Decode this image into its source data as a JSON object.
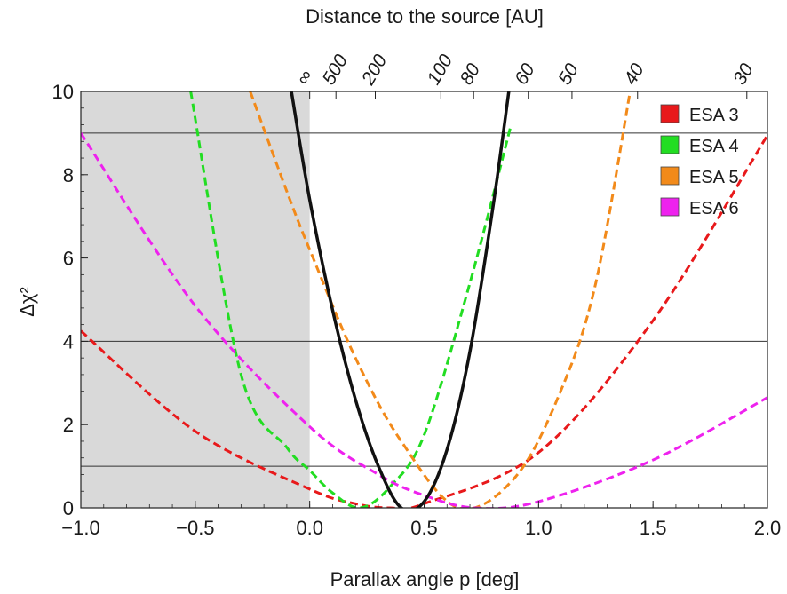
{
  "chart_data": {
    "type": "line",
    "xlabel": "Parallax angle p [deg]",
    "ylabel": "Δχ²",
    "top_axis_label": "Distance to the source [AU]",
    "xlim": [
      -1.0,
      2.0
    ],
    "ylim": [
      0,
      10
    ],
    "x_ticks": [
      "-1.0",
      "-0.5",
      "0.0",
      "0.5",
      "1.0",
      "1.5",
      "2.0"
    ],
    "y_ticks": [
      "0",
      "2",
      "4",
      "6",
      "8",
      "10"
    ],
    "top_ticks": [
      {
        "label": "∞",
        "p": 0.0
      },
      {
        "label": "500",
        "p": 0.1146
      },
      {
        "label": "200",
        "p": 0.2865
      },
      {
        "label": "100",
        "p": 0.573
      },
      {
        "label": "80",
        "p": 0.7162
      },
      {
        "label": "60",
        "p": 0.9549
      },
      {
        "label": "50",
        "p": 1.1459
      },
      {
        "label": "40",
        "p": 1.4324
      },
      {
        "label": "30",
        "p": 1.9099
      }
    ],
    "horizontal_lines": [
      1,
      4,
      9
    ],
    "shaded_region": {
      "x": [
        -1.0,
        0.0
      ],
      "color": "#d9d9d9"
    },
    "series": [
      {
        "name": "ESA 3",
        "color": "#e8191b",
        "dashed": true,
        "in_legend": true,
        "x": [
          -1.0,
          -0.5,
          0.0,
          0.2,
          0.35,
          0.5,
          1.0,
          1.5,
          2.0
        ],
        "y": [
          4.25,
          1.84,
          0.45,
          0.1,
          0.0,
          0.1,
          1.33,
          4.5,
          8.95
        ]
      },
      {
        "name": "ESA 4",
        "color": "#22dd22",
        "dashed": true,
        "in_legend": true,
        "x": [
          -0.52,
          -0.3,
          -0.1,
          0.0,
          0.1,
          0.22,
          0.35,
          0.5,
          0.7,
          0.88
        ],
        "y": [
          10.0,
          3.2,
          1.45,
          0.9,
          0.36,
          0.0,
          0.5,
          1.75,
          5.4,
          9.2
        ]
      },
      {
        "name": "ESA 5",
        "color": "#f28a1a",
        "dashed": true,
        "in_legend": true,
        "x": [
          -0.26,
          -0.1,
          0.0,
          0.2,
          0.4,
          0.65,
          0.9,
          1.1,
          1.25,
          1.4
        ],
        "y": [
          10.0,
          7.6,
          6.2,
          3.6,
          1.6,
          0.0,
          0.75,
          2.85,
          5.4,
          10.0
        ]
      },
      {
        "name": "ESA 6",
        "color": "#ee22ee",
        "dashed": true,
        "in_legend": true,
        "x": [
          -1.0,
          -0.5,
          0.0,
          0.3,
          0.5,
          0.72,
          1.0,
          1.5,
          2.0
        ],
        "y": [
          9.0,
          4.85,
          1.95,
          0.8,
          0.3,
          0.0,
          0.15,
          1.15,
          2.65
        ]
      },
      {
        "name": "",
        "color": "#111111",
        "dashed": false,
        "in_legend": false,
        "x": [
          -0.08,
          0.0,
          0.1,
          0.2,
          0.3,
          0.4,
          0.5,
          0.6,
          0.7,
          0.8,
          0.87
        ],
        "y": [
          10.0,
          7.4,
          4.75,
          2.6,
          1.0,
          0.0,
          0.15,
          1.4,
          3.75,
          7.2,
          10.0
        ]
      }
    ]
  }
}
